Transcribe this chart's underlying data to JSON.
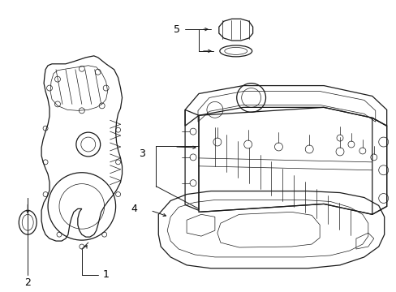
{
  "bg_color": "#ffffff",
  "line_color": "#1a1a1a",
  "label_color": "#000000",
  "label_fontsize": 9,
  "figsize": [
    4.89,
    3.6
  ],
  "dpi": 100,
  "lw_main": 0.9,
  "lw_thin": 0.5,
  "lw_label": 0.7
}
